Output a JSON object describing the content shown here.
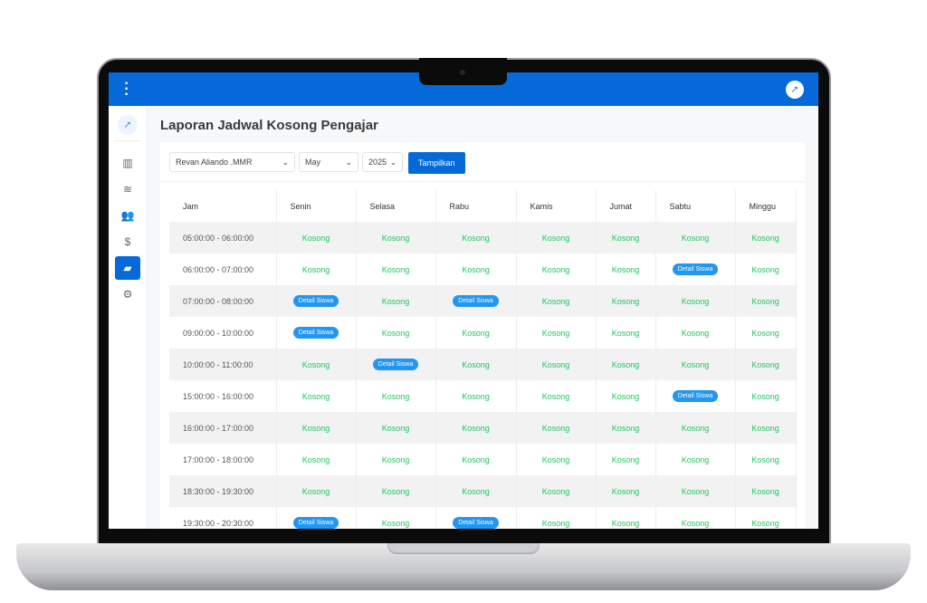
{
  "app": {
    "title": "Laporan Jadwal Kosong Pengajar",
    "accent": "#0669d9",
    "menu_icon": "kebab-menu",
    "avatar_icon": "rocket-logo"
  },
  "sidebar": {
    "items": [
      {
        "icon": "chart-bar-icon",
        "glyph": "▥"
      },
      {
        "icon": "layers-icon",
        "glyph": "≋"
      },
      {
        "icon": "users-icon",
        "glyph": "👥"
      },
      {
        "icon": "dollar-icon",
        "glyph": "$"
      },
      {
        "icon": "folder-open-icon",
        "glyph": "▰",
        "active": true
      },
      {
        "icon": "gear-icon",
        "glyph": "⚙"
      }
    ]
  },
  "filters": {
    "teacher": "Revan Aliando .MMR",
    "month": "May",
    "year": "2025",
    "submit": "Tampilkan"
  },
  "table": {
    "headers": [
      "Jam",
      "Senin",
      "Selasa",
      "Rabu",
      "Kamis",
      "Jumat",
      "Sabtu",
      "Minggu"
    ],
    "empty_label": "Kosong",
    "detail_label": "Detail Siswa",
    "rows": [
      {
        "jam": "05:00:00 - 06:00:00",
        "cells": [
          "Kosong",
          "Kosong",
          "Kosong",
          "Kosong",
          "Kosong",
          "Kosong",
          "Kosong"
        ]
      },
      {
        "jam": "06:00:00 - 07:00:00",
        "cells": [
          "Kosong",
          "Kosong",
          "Kosong",
          "Kosong",
          "Kosong",
          "Detail Siswa",
          "Kosong"
        ]
      },
      {
        "jam": "07:00:00 - 08:00:00",
        "cells": [
          "Detail Siswa",
          "Kosong",
          "Detail Siswa",
          "Kosong",
          "Kosong",
          "Kosong",
          "Kosong"
        ]
      },
      {
        "jam": "09:00:00 - 10:00:00",
        "cells": [
          "Detail Siswa",
          "Kosong",
          "Kosong",
          "Kosong",
          "Kosong",
          "Kosong",
          "Kosong"
        ]
      },
      {
        "jam": "10:00:00 - 11:00:00",
        "cells": [
          "Kosong",
          "Detail Siswa",
          "Kosong",
          "Kosong",
          "Kosong",
          "Kosong",
          "Kosong"
        ]
      },
      {
        "jam": "15:00:00 - 16:00:00",
        "cells": [
          "Kosong",
          "Kosong",
          "Kosong",
          "Kosong",
          "Kosong",
          "Detail Siswa",
          "Kosong"
        ]
      },
      {
        "jam": "16:00:00 - 17:00:00",
        "cells": [
          "Kosong",
          "Kosong",
          "Kosong",
          "Kosong",
          "Kosong",
          "Kosong",
          "Kosong"
        ]
      },
      {
        "jam": "17:00:00 - 18:00:00",
        "cells": [
          "Kosong",
          "Kosong",
          "Kosong",
          "Kosong",
          "Kosong",
          "Kosong",
          "Kosong"
        ]
      },
      {
        "jam": "18:30:00 - 19:30:00",
        "cells": [
          "Kosong",
          "Kosong",
          "Kosong",
          "Kosong",
          "Kosong",
          "Kosong",
          "Kosong"
        ]
      },
      {
        "jam": "19:30:00 - 20:30:00",
        "cells": [
          "Detail Siswa",
          "Kosong",
          "Detail Siswa",
          "Kosong",
          "Kosong",
          "Kosong",
          "Kosong"
        ]
      }
    ]
  }
}
